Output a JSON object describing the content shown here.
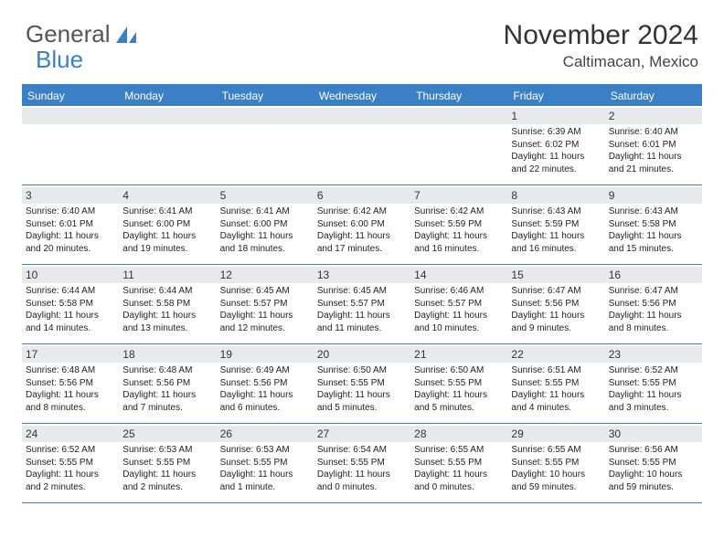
{
  "logo": {
    "text1": "General",
    "text2": "Blue"
  },
  "title": "November 2024",
  "location": "Caltimacan, Mexico",
  "day_names": [
    "Sunday",
    "Monday",
    "Tuesday",
    "Wednesday",
    "Thursday",
    "Friday",
    "Saturday"
  ],
  "colors": {
    "brand_blue": "#3b7fc4",
    "header_gray": "#e7e9eb",
    "text": "#222222",
    "title_text": "#333333"
  },
  "weeks": [
    [
      {
        "n": "",
        "sr": "",
        "ss": "",
        "dl": ""
      },
      {
        "n": "",
        "sr": "",
        "ss": "",
        "dl": ""
      },
      {
        "n": "",
        "sr": "",
        "ss": "",
        "dl": ""
      },
      {
        "n": "",
        "sr": "",
        "ss": "",
        "dl": ""
      },
      {
        "n": "",
        "sr": "",
        "ss": "",
        "dl": ""
      },
      {
        "n": "1",
        "sr": "Sunrise: 6:39 AM",
        "ss": "Sunset: 6:02 PM",
        "dl": "Daylight: 11 hours and 22 minutes."
      },
      {
        "n": "2",
        "sr": "Sunrise: 6:40 AM",
        "ss": "Sunset: 6:01 PM",
        "dl": "Daylight: 11 hours and 21 minutes."
      }
    ],
    [
      {
        "n": "3",
        "sr": "Sunrise: 6:40 AM",
        "ss": "Sunset: 6:01 PM",
        "dl": "Daylight: 11 hours and 20 minutes."
      },
      {
        "n": "4",
        "sr": "Sunrise: 6:41 AM",
        "ss": "Sunset: 6:00 PM",
        "dl": "Daylight: 11 hours and 19 minutes."
      },
      {
        "n": "5",
        "sr": "Sunrise: 6:41 AM",
        "ss": "Sunset: 6:00 PM",
        "dl": "Daylight: 11 hours and 18 minutes."
      },
      {
        "n": "6",
        "sr": "Sunrise: 6:42 AM",
        "ss": "Sunset: 6:00 PM",
        "dl": "Daylight: 11 hours and 17 minutes."
      },
      {
        "n": "7",
        "sr": "Sunrise: 6:42 AM",
        "ss": "Sunset: 5:59 PM",
        "dl": "Daylight: 11 hours and 16 minutes."
      },
      {
        "n": "8",
        "sr": "Sunrise: 6:43 AM",
        "ss": "Sunset: 5:59 PM",
        "dl": "Daylight: 11 hours and 16 minutes."
      },
      {
        "n": "9",
        "sr": "Sunrise: 6:43 AM",
        "ss": "Sunset: 5:58 PM",
        "dl": "Daylight: 11 hours and 15 minutes."
      }
    ],
    [
      {
        "n": "10",
        "sr": "Sunrise: 6:44 AM",
        "ss": "Sunset: 5:58 PM",
        "dl": "Daylight: 11 hours and 14 minutes."
      },
      {
        "n": "11",
        "sr": "Sunrise: 6:44 AM",
        "ss": "Sunset: 5:58 PM",
        "dl": "Daylight: 11 hours and 13 minutes."
      },
      {
        "n": "12",
        "sr": "Sunrise: 6:45 AM",
        "ss": "Sunset: 5:57 PM",
        "dl": "Daylight: 11 hours and 12 minutes."
      },
      {
        "n": "13",
        "sr": "Sunrise: 6:45 AM",
        "ss": "Sunset: 5:57 PM",
        "dl": "Daylight: 11 hours and 11 minutes."
      },
      {
        "n": "14",
        "sr": "Sunrise: 6:46 AM",
        "ss": "Sunset: 5:57 PM",
        "dl": "Daylight: 11 hours and 10 minutes."
      },
      {
        "n": "15",
        "sr": "Sunrise: 6:47 AM",
        "ss": "Sunset: 5:56 PM",
        "dl": "Daylight: 11 hours and 9 minutes."
      },
      {
        "n": "16",
        "sr": "Sunrise: 6:47 AM",
        "ss": "Sunset: 5:56 PM",
        "dl": "Daylight: 11 hours and 8 minutes."
      }
    ],
    [
      {
        "n": "17",
        "sr": "Sunrise: 6:48 AM",
        "ss": "Sunset: 5:56 PM",
        "dl": "Daylight: 11 hours and 8 minutes."
      },
      {
        "n": "18",
        "sr": "Sunrise: 6:48 AM",
        "ss": "Sunset: 5:56 PM",
        "dl": "Daylight: 11 hours and 7 minutes."
      },
      {
        "n": "19",
        "sr": "Sunrise: 6:49 AM",
        "ss": "Sunset: 5:56 PM",
        "dl": "Daylight: 11 hours and 6 minutes."
      },
      {
        "n": "20",
        "sr": "Sunrise: 6:50 AM",
        "ss": "Sunset: 5:55 PM",
        "dl": "Daylight: 11 hours and 5 minutes."
      },
      {
        "n": "21",
        "sr": "Sunrise: 6:50 AM",
        "ss": "Sunset: 5:55 PM",
        "dl": "Daylight: 11 hours and 5 minutes."
      },
      {
        "n": "22",
        "sr": "Sunrise: 6:51 AM",
        "ss": "Sunset: 5:55 PM",
        "dl": "Daylight: 11 hours and 4 minutes."
      },
      {
        "n": "23",
        "sr": "Sunrise: 6:52 AM",
        "ss": "Sunset: 5:55 PM",
        "dl": "Daylight: 11 hours and 3 minutes."
      }
    ],
    [
      {
        "n": "24",
        "sr": "Sunrise: 6:52 AM",
        "ss": "Sunset: 5:55 PM",
        "dl": "Daylight: 11 hours and 2 minutes."
      },
      {
        "n": "25",
        "sr": "Sunrise: 6:53 AM",
        "ss": "Sunset: 5:55 PM",
        "dl": "Daylight: 11 hours and 2 minutes."
      },
      {
        "n": "26",
        "sr": "Sunrise: 6:53 AM",
        "ss": "Sunset: 5:55 PM",
        "dl": "Daylight: 11 hours and 1 minute."
      },
      {
        "n": "27",
        "sr": "Sunrise: 6:54 AM",
        "ss": "Sunset: 5:55 PM",
        "dl": "Daylight: 11 hours and 0 minutes."
      },
      {
        "n": "28",
        "sr": "Sunrise: 6:55 AM",
        "ss": "Sunset: 5:55 PM",
        "dl": "Daylight: 11 hours and 0 minutes."
      },
      {
        "n": "29",
        "sr": "Sunrise: 6:55 AM",
        "ss": "Sunset: 5:55 PM",
        "dl": "Daylight: 10 hours and 59 minutes."
      },
      {
        "n": "30",
        "sr": "Sunrise: 6:56 AM",
        "ss": "Sunset: 5:55 PM",
        "dl": "Daylight: 10 hours and 59 minutes."
      }
    ]
  ]
}
